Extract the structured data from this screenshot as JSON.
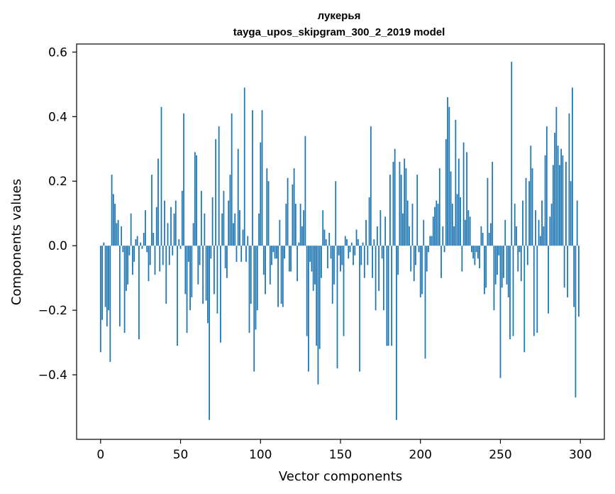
{
  "chart_data": {
    "type": "bar",
    "title": "лукерья",
    "subtitle": "tayga_upos_skipgram_300_2_2019 model",
    "xlabel": "Vector components",
    "ylabel": "Components values",
    "xlim": [
      -15,
      315
    ],
    "ylim": [
      -0.6,
      0.625
    ],
    "xticks": [
      0,
      50,
      100,
      150,
      200,
      250,
      300
    ],
    "xtick_labels": [
      "0",
      "50",
      "100",
      "150",
      "200",
      "250",
      "300"
    ],
    "yticks": [
      -0.4,
      -0.2,
      0.0,
      0.2,
      0.4,
      0.6
    ],
    "ytick_labels": [
      "−0.4",
      "−0.2",
      "0.0",
      "0.2",
      "0.4",
      "0.6"
    ],
    "grid": false,
    "bar_color": "#1f77b4",
    "n_components": 300,
    "values": [
      -0.33,
      -0.23,
      0.01,
      -0.19,
      -0.25,
      -0.2,
      -0.36,
      0.22,
      0.16,
      0.13,
      0.07,
      0.08,
      -0.25,
      0.06,
      -0.02,
      -0.27,
      -0.14,
      -0.12,
      -0.03,
      0.1,
      -0.09,
      -0.05,
      0.02,
      0.03,
      -0.29,
      0.01,
      -0.01,
      0.04,
      0.11,
      -0.02,
      -0.11,
      -0.06,
      0.22,
      0.04,
      -0.09,
      0.12,
      0.27,
      -0.08,
      0.43,
      -0.06,
      0.14,
      -0.18,
      0.07,
      -0.06,
      0.12,
      -0.03,
      0.1,
      0.14,
      -0.31,
      0.02,
      -0.01,
      0.17,
      0.41,
      -0.15,
      -0.27,
      -0.05,
      -0.2,
      -0.16,
      0.07,
      0.29,
      0.28,
      -0.12,
      -0.06,
      0.17,
      -0.18,
      0.1,
      -0.17,
      -0.24,
      -0.54,
      -0.04,
      0.15,
      -0.15,
      0.33,
      -0.21,
      0.37,
      -0.3,
      0.1,
      0.17,
      -0.07,
      -0.1,
      0.14,
      0.22,
      0.41,
      0.07,
      0.1,
      -0.05,
      0.3,
      0.11,
      -0.05,
      0.05,
      0.49,
      -0.05,
      0.03,
      -0.27,
      -0.18,
      0.42,
      -0.39,
      -0.26,
      -0.2,
      0.1,
      0.32,
      0.42,
      -0.09,
      -0.15,
      0.24,
      0.2,
      -0.12,
      -0.06,
      -0.02,
      -0.04,
      -0.04,
      -0.19,
      0.08,
      -0.18,
      -0.19,
      -0.04,
      0.13,
      0.21,
      -0.08,
      -0.08,
      0.19,
      0.24,
      0.13,
      -0.11,
      0.01,
      0.13,
      0.06,
      0.11,
      0.34,
      -0.28,
      -0.39,
      -0.05,
      -0.08,
      -0.14,
      -0.12,
      -0.31,
      -0.43,
      -0.32,
      -0.1,
      0.11,
      0.05,
      0.02,
      -0.07,
      0.04,
      -0.04,
      -0.18,
      -0.12,
      0.2,
      -0.38,
      -0.03,
      -0.08,
      -0.06,
      -0.28,
      0.03,
      0.02,
      -0.04,
      -0.02,
      0.01,
      -0.06,
      -0.03,
      0.05,
      0.02,
      -0.39,
      -0.06,
      0.01,
      -0.1,
      0.08,
      -0.06,
      0.15,
      0.37,
      -0.1,
      0.02,
      -0.2,
      0.06,
      -0.14,
      0.11,
      -0.04,
      -0.2,
      0.09,
      -0.31,
      -0.31,
      0.22,
      -0.31,
      0.26,
      0.3,
      -0.54,
      -0.09,
      0.26,
      0.22,
      0.1,
      0.27,
      0.24,
      0.14,
      0.06,
      -0.08,
      0.13,
      -0.11,
      -0.06,
      0.22,
      -0.02,
      -0.16,
      -0.15,
      0.08,
      -0.35,
      -0.08,
      -0.02,
      0.03,
      0.03,
      0.09,
      0.12,
      0.14,
      0.13,
      0.24,
      -0.1,
      0.06,
      -0.02,
      0.33,
      0.46,
      0.43,
      0.23,
      0.13,
      0.06,
      0.39,
      0.16,
      0.27,
      0.15,
      -0.08,
      0.32,
      0.08,
      0.29,
      0.11,
      0.09,
      -0.02,
      -0.04,
      -0.06,
      -0.02,
      -0.04,
      -0.07,
      0.06,
      0.04,
      -0.15,
      -0.13,
      0.21,
      0.04,
      0.07,
      0.26,
      -0.2,
      -0.12,
      -0.09,
      -0.03,
      -0.41,
      -0.13,
      -0.1,
      0.08,
      -0.12,
      -0.16,
      -0.29,
      0.57,
      -0.28,
      0.13,
      0.06,
      -0.08,
      -0.02,
      -0.11,
      0.14,
      -0.33,
      0.21,
      -0.06,
      0.2,
      0.31,
      0.24,
      -0.28,
      0.11,
      -0.27,
      0.08,
      0.03,
      0.14,
      0.06,
      0.28,
      0.37,
      -0.21,
      0.09,
      0.13,
      0.25,
      0.35,
      0.43,
      0.31,
      0.25,
      0.3,
      0.28,
      -0.13,
      0.26,
      -0.16,
      0.41,
      0.2,
      0.49,
      -0.19,
      -0.47,
      0.14,
      -0.22
    ]
  }
}
